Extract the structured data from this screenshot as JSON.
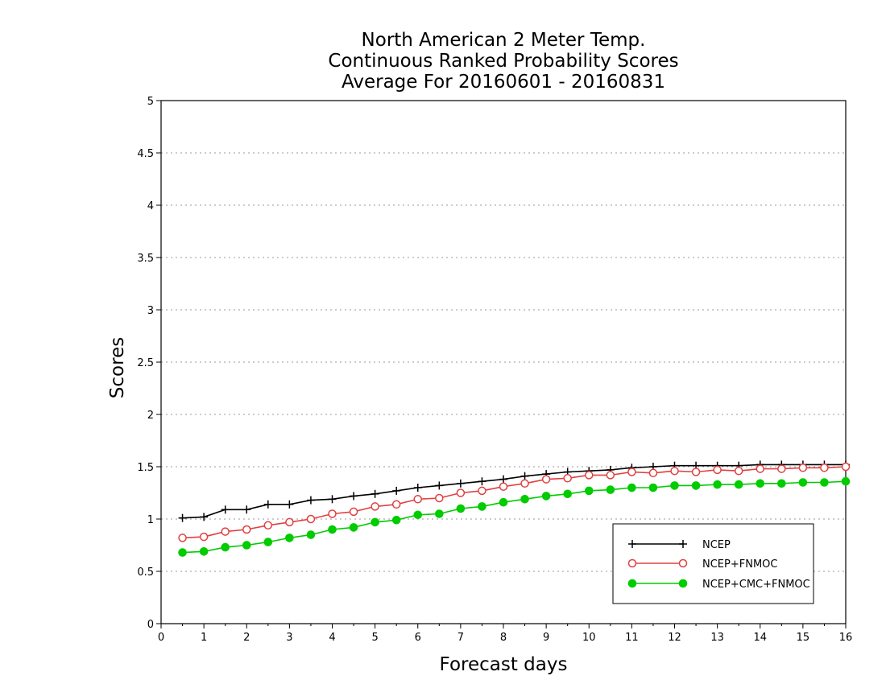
{
  "chart_data": {
    "type": "line",
    "title": [
      "North American 2 Meter Temp.",
      "Continuous Ranked Probability Scores",
      "Average For 20160601 - 20160831"
    ],
    "xlabel": "Forecast days",
    "ylabel": "Scores",
    "xlim": [
      0,
      16
    ],
    "ylim": [
      0,
      5
    ],
    "x_ticks": [
      0,
      1,
      2,
      3,
      4,
      5,
      6,
      7,
      8,
      9,
      10,
      11,
      12,
      13,
      14,
      15,
      16
    ],
    "y_ticks": [
      0,
      0.5,
      1,
      1.5,
      2,
      2.5,
      3,
      3.5,
      4,
      4.5,
      5
    ],
    "grid": "horizontal-dotted",
    "legend_position": "bottom-right",
    "x": [
      0.5,
      1,
      1.5,
      2,
      2.5,
      3,
      3.5,
      4,
      4.5,
      5,
      5.5,
      6,
      6.5,
      7,
      7.5,
      8,
      8.5,
      9,
      9.5,
      10,
      10.5,
      11,
      11.5,
      12,
      12.5,
      13,
      13.5,
      14,
      14.5,
      15,
      15.5,
      16
    ],
    "series": [
      {
        "name": "NCEP",
        "color": "#000000",
        "marker": "plus",
        "values": [
          1.01,
          1.02,
          1.09,
          1.09,
          1.14,
          1.14,
          1.18,
          1.19,
          1.22,
          1.24,
          1.27,
          1.3,
          1.32,
          1.34,
          1.36,
          1.38,
          1.41,
          1.43,
          1.45,
          1.46,
          1.47,
          1.49,
          1.5,
          1.51,
          1.51,
          1.51,
          1.51,
          1.52,
          1.52,
          1.52,
          1.52,
          1.52
        ]
      },
      {
        "name": "NCEP+FNMOC",
        "color": "#e04040",
        "marker": "open-circle",
        "values": [
          0.82,
          0.83,
          0.88,
          0.9,
          0.94,
          0.97,
          1.0,
          1.05,
          1.07,
          1.12,
          1.14,
          1.19,
          1.2,
          1.25,
          1.27,
          1.31,
          1.34,
          1.38,
          1.39,
          1.42,
          1.42,
          1.45,
          1.44,
          1.46,
          1.45,
          1.47,
          1.46,
          1.48,
          1.48,
          1.49,
          1.49,
          1.5
        ]
      },
      {
        "name": "NCEP+CMC+FNMOC",
        "color": "#00cc00",
        "marker": "filled-circle",
        "values": [
          0.68,
          0.69,
          0.73,
          0.75,
          0.78,
          0.82,
          0.85,
          0.9,
          0.92,
          0.97,
          0.99,
          1.04,
          1.05,
          1.1,
          1.12,
          1.16,
          1.19,
          1.22,
          1.24,
          1.27,
          1.28,
          1.3,
          1.3,
          1.32,
          1.32,
          1.33,
          1.33,
          1.34,
          1.34,
          1.35,
          1.35,
          1.36
        ]
      }
    ]
  }
}
